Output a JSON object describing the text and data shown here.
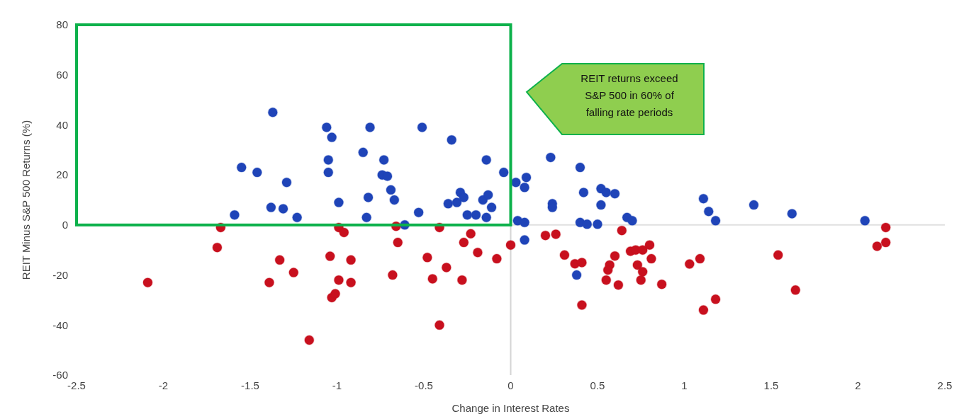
{
  "chart_data": {
    "type": "scatter",
    "xlabel": "Change in Interest Rates",
    "ylabel": "REIT Minus S&P 500 Returns (%)",
    "annotations": [
      "REIT returns exceed S&P 500 in 60% of falling rate periods"
    ],
    "xlim": [
      -2.5,
      2.5
    ],
    "xticks": [
      -2.5,
      -2,
      -1.5,
      -1,
      -0.5,
      0,
      0.5,
      1,
      1.5,
      2,
      2.5
    ],
    "ylim": [
      -60,
      80
    ],
    "yticks": [
      -60,
      -40,
      -20,
      0,
      20,
      40,
      60,
      80
    ],
    "grid": false,
    "marker": "circle",
    "ref_lines": [
      {
        "axis": "x",
        "value": 0,
        "color": "#d4d4d4"
      },
      {
        "axis": "y",
        "value": 0,
        "color": "#e0e0e0"
      }
    ],
    "series": [
      {
        "color": "#1f44b8",
        "x": [
          -1.59,
          -1.55,
          -1.46,
          -1.37,
          -1.38,
          -1.31,
          -1.29,
          -1.23,
          -1.06,
          -1.03,
          -1.05,
          -1.05,
          -0.99,
          -0.85,
          -0.81,
          -0.73,
          -0.74,
          -0.71,
          -0.69,
          -0.67,
          -0.82,
          -0.83,
          -0.53,
          -0.51,
          -0.34,
          -0.14,
          -0.04,
          -0.36,
          -0.31,
          -0.29,
          -0.27,
          -0.16,
          -0.13,
          -0.11,
          -0.25,
          -0.2,
          -0.14,
          -0.61,
          0.03,
          0.09,
          0.08,
          0.23,
          0.4,
          0.24,
          0.24,
          0.42,
          0.52,
          0.55,
          0.6,
          0.52,
          0.67,
          0.7,
          0.04,
          0.08,
          0.4,
          0.44,
          0.5,
          0.08,
          0.38,
          1.11,
          1.14,
          1.18,
          1.4,
          1.62,
          2.04
        ],
        "values": [
          4,
          23,
          21,
          45,
          7,
          6.5,
          17,
          3,
          39,
          35,
          26,
          21,
          9,
          29,
          39,
          26,
          20,
          19.5,
          14,
          10,
          11,
          3,
          5,
          39,
          34,
          26,
          21,
          8.5,
          9,
          13,
          11,
          10,
          12,
          7,
          4,
          4,
          3,
          0,
          17,
          19,
          15,
          27,
          23,
          8.5,
          7,
          13,
          14.5,
          13,
          12.5,
          8,
          3,
          1.7,
          1.7,
          1,
          1,
          0.3,
          0.3,
          -6,
          -20,
          10.5,
          5.4,
          1.7,
          8,
          4.5,
          1.7
        ]
      },
      {
        "color": "#c8101e",
        "x": [
          -1.67,
          -1.69,
          -2.09,
          -1.39,
          -1.33,
          -1.25,
          -1.16,
          -1.04,
          -0.99,
          -1.03,
          -1.01,
          -0.99,
          -0.96,
          -0.92,
          -0.92,
          -0.66,
          -0.65,
          -0.68,
          -0.48,
          -0.45,
          -0.37,
          -0.41,
          -0.41,
          -0.28,
          -0.27,
          -0.23,
          -0.19,
          -0.08,
          0,
          0.2,
          0.26,
          0.31,
          0.37,
          0.41,
          0.41,
          0.64,
          0.6,
          0.57,
          0.56,
          0.55,
          0.62,
          0.69,
          0.72,
          0.76,
          0.8,
          0.81,
          0.73,
          0.76,
          0.75,
          0.87,
          1.03,
          1.09,
          1.18,
          1.11,
          1.54,
          1.64,
          2.16,
          2.11,
          2.16
        ],
        "values": [
          -1,
          -9,
          -23,
          -23,
          -14,
          -19,
          -46,
          -12.5,
          -22,
          -29,
          -27.5,
          -1,
          -3,
          -14,
          -23,
          -0.5,
          -7,
          -20,
          -13,
          -21.5,
          -17,
          -1,
          -40,
          -22,
          -7,
          -3.5,
          -11,
          -13.5,
          -8,
          -4.2,
          -3.7,
          -12,
          -15.5,
          -15,
          -32,
          -2.2,
          -12.4,
          -16,
          -18,
          -22,
          -24,
          -10.5,
          -10,
          -10,
          -8,
          -13.5,
          -16,
          -18.7,
          -22,
          -23.7,
          -15.6,
          -13.5,
          -29.7,
          -34,
          -12,
          -26,
          -1,
          -8.5,
          -7
        ]
      }
    ]
  }
}
